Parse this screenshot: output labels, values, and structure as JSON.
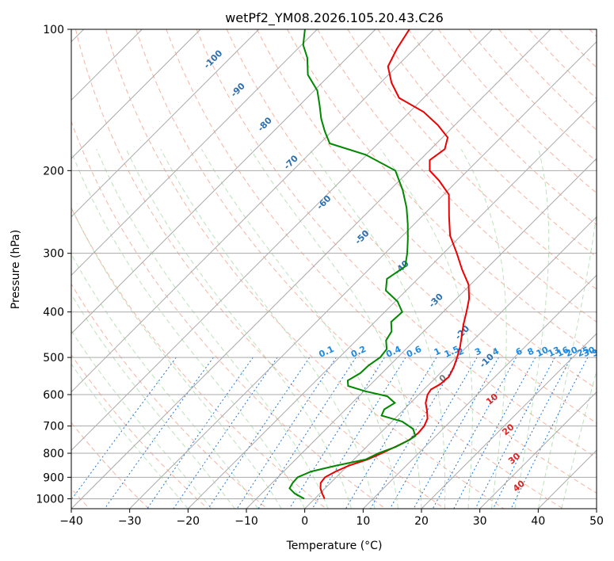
{
  "chart_data": {
    "type": "line",
    "chart_kind": "skew-T log-P diagram",
    "title": "wetPf2_YM08.2026.105.20.43.C26",
    "xlabel": "Temperature (°C)",
    "ylabel": "Pressure (hPa)",
    "xlim": [
      -40,
      50
    ],
    "ylim": [
      1050,
      100
    ],
    "y_scale": "log",
    "grid": true,
    "x_ticks": [
      -40,
      -30,
      -20,
      -10,
      0,
      10,
      20,
      30,
      40,
      50
    ],
    "y_ticks": [
      100,
      200,
      300,
      400,
      500,
      600,
      700,
      800,
      900,
      1000
    ],
    "dry_adiabat_labels": [
      {
        "text": "-100",
        "t": -92,
        "p": 117
      },
      {
        "text": "-90",
        "t": -82.5,
        "p": 136
      },
      {
        "text": "-80",
        "t": -72,
        "p": 161
      },
      {
        "text": "-70",
        "t": -61,
        "p": 194
      },
      {
        "text": "-60",
        "t": -48.5,
        "p": 236
      },
      {
        "text": "-50",
        "t": -36,
        "p": 280
      },
      {
        "text": "-40",
        "t": -24,
        "p": 325
      },
      {
        "text": "-30",
        "t": -12.5,
        "p": 382
      },
      {
        "text": "-20",
        "t": -2.5,
        "p": 447
      },
      {
        "text": "-10",
        "t": 6.5,
        "p": 513
      }
    ],
    "moist_adiabat_labels": [
      {
        "text": "0",
        "t": 2,
        "p": 560
      },
      {
        "text": "10",
        "t": 14,
        "p": 620
      },
      {
        "text": "20",
        "t": 22,
        "p": 720
      },
      {
        "text": "30",
        "t": 28,
        "p": 830
      },
      {
        "text": "40",
        "t": 33.5,
        "p": 950
      }
    ],
    "mixing_ratio_labels": [
      "0.1",
      "0.2",
      "0.4",
      "0.6",
      "1",
      "1.5",
      "2",
      "3",
      "4",
      "6",
      "8",
      "10",
      "13",
      "16",
      "20",
      "25",
      "30",
      "36"
    ],
    "mixing_ratio_label_t": [
      -22,
      -16.5,
      -10.5,
      -7,
      -3,
      -0.5,
      1,
      4,
      7,
      11,
      13,
      15,
      17,
      18.5,
      20,
      22,
      23,
      24.5
    ],
    "series": [
      {
        "name": "",
        "role": "temperature",
        "color": "#ee0000",
        "points": [
          [
            1.7,
            1000
          ],
          [
            0.4,
            975
          ],
          [
            -0.8,
            950
          ],
          [
            -1.7,
            925
          ],
          [
            -1.9,
            900
          ],
          [
            -1.1,
            875
          ],
          [
            0.2,
            850
          ],
          [
            2.3,
            825
          ],
          [
            3.7,
            800
          ],
          [
            4.9,
            775
          ],
          [
            6.1,
            750
          ],
          [
            6.5,
            725
          ],
          [
            6.3,
            700
          ],
          [
            5.6,
            675
          ],
          [
            4.2,
            650
          ],
          [
            2.6,
            625
          ],
          [
            1.5,
            600
          ],
          [
            1.2,
            585
          ],
          [
            1.9,
            570
          ],
          [
            2.1,
            550
          ],
          [
            1.3,
            525
          ],
          [
            0.2,
            500
          ],
          [
            -1.1,
            475
          ],
          [
            -2.7,
            450
          ],
          [
            -4.4,
            425
          ],
          [
            -6,
            400
          ],
          [
            -7.8,
            375
          ],
          [
            -10.3,
            350
          ],
          [
            -14,
            325
          ],
          [
            -17.7,
            300
          ],
          [
            -21.9,
            275
          ],
          [
            -25.4,
            250
          ],
          [
            -29.1,
            225
          ],
          [
            -33.2,
            210
          ],
          [
            -36.5,
            200
          ],
          [
            -38.3,
            190
          ],
          [
            -37.6,
            180
          ],
          [
            -39.1,
            170
          ],
          [
            -42.9,
            160
          ],
          [
            -47.6,
            150
          ],
          [
            -54.2,
            140
          ],
          [
            -58.1,
            130
          ],
          [
            -61.5,
            120
          ],
          [
            -63,
            110
          ],
          [
            -64.2,
            100
          ]
        ]
      },
      {
        "name": "",
        "role": "dewpoint",
        "color": "#008800",
        "points": [
          [
            -1.8,
            1000
          ],
          [
            -4.3,
            975
          ],
          [
            -6.1,
            950
          ],
          [
            -6.5,
            925
          ],
          [
            -6.6,
            900
          ],
          [
            -5.3,
            875
          ],
          [
            -2,
            850
          ],
          [
            2,
            825
          ],
          [
            3.1,
            800
          ],
          [
            5,
            775
          ],
          [
            6.1,
            750
          ],
          [
            6.5,
            735
          ],
          [
            4.9,
            710
          ],
          [
            1.8,
            685
          ],
          [
            -2.8,
            665
          ],
          [
            -3.4,
            645
          ],
          [
            -2.7,
            625
          ],
          [
            -5.1,
            605
          ],
          [
            -9.8,
            590
          ],
          [
            -13.6,
            575
          ],
          [
            -14.6,
            560
          ],
          [
            -13.7,
            540
          ],
          [
            -13.6,
            520
          ],
          [
            -13,
            500
          ],
          [
            -13.3,
            480
          ],
          [
            -14.9,
            460
          ],
          [
            -15.5,
            440
          ],
          [
            -17.2,
            420
          ],
          [
            -17,
            400
          ],
          [
            -19.6,
            380
          ],
          [
            -23.5,
            360
          ],
          [
            -25.3,
            340
          ],
          [
            -24.3,
            320
          ],
          [
            -26.2,
            300
          ],
          [
            -28.5,
            280
          ],
          [
            -31.1,
            260
          ],
          [
            -34.1,
            240
          ],
          [
            -37.8,
            220
          ],
          [
            -42.4,
            200
          ],
          [
            -50.2,
            185
          ],
          [
            -58.3,
            175
          ],
          [
            -61.2,
            165
          ],
          [
            -64,
            155
          ],
          [
            -66.6,
            145
          ],
          [
            -69.5,
            135
          ],
          [
            -73.8,
            125
          ],
          [
            -76.8,
            115
          ],
          [
            -79.7,
            108
          ],
          [
            -82.1,
            100
          ]
        ]
      }
    ]
  }
}
